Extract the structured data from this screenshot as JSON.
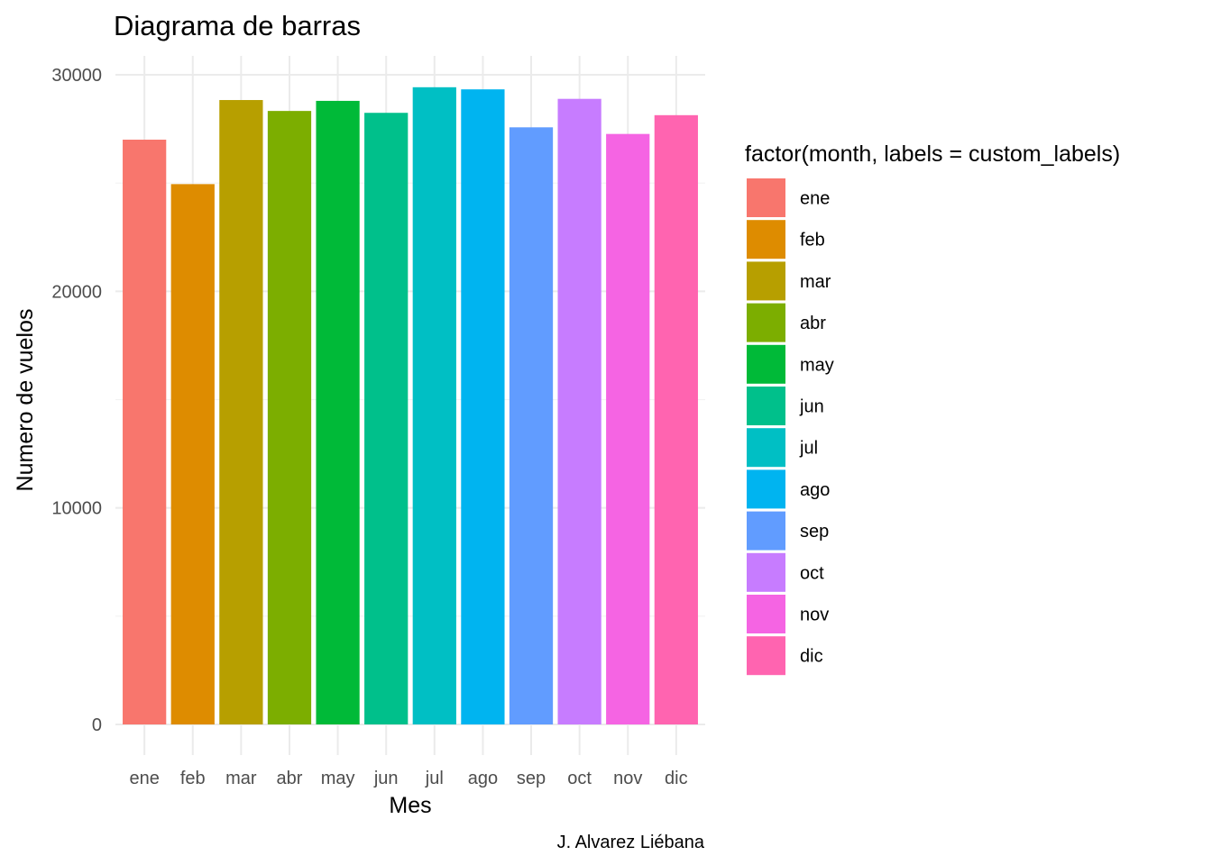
{
  "chart_data": {
    "type": "bar",
    "title": "Diagrama de barras",
    "xlabel": "Mes",
    "ylabel": "Numero de vuelos",
    "caption": "J. Alvarez Liébana",
    "categories": [
      "ene",
      "feb",
      "mar",
      "abr",
      "may",
      "jun",
      "jul",
      "ago",
      "sep",
      "oct",
      "nov",
      "dic"
    ],
    "values": [
      27004,
      24951,
      28834,
      28330,
      28796,
      28243,
      29425,
      29327,
      27574,
      28889,
      27268,
      28135
    ],
    "colors": [
      "#F8766D",
      "#DE8C00",
      "#B79F00",
      "#7CAE00",
      "#00BA38",
      "#00C08B",
      "#00BFC4",
      "#00B4F0",
      "#619CFF",
      "#C77CFF",
      "#F564E3",
      "#FF64B0"
    ],
    "ylim": [
      0,
      30000
    ],
    "yticks": [
      0,
      10000,
      20000,
      30000
    ],
    "ytick_labels": [
      "0",
      "10000",
      "20000",
      "30000"
    ],
    "grid": true,
    "legend": {
      "title": "factor(month, labels = custom_labels)",
      "position": "right",
      "entries": [
        "ene",
        "feb",
        "mar",
        "abr",
        "may",
        "jun",
        "jul",
        "ago",
        "sep",
        "oct",
        "nov",
        "dic"
      ]
    }
  }
}
